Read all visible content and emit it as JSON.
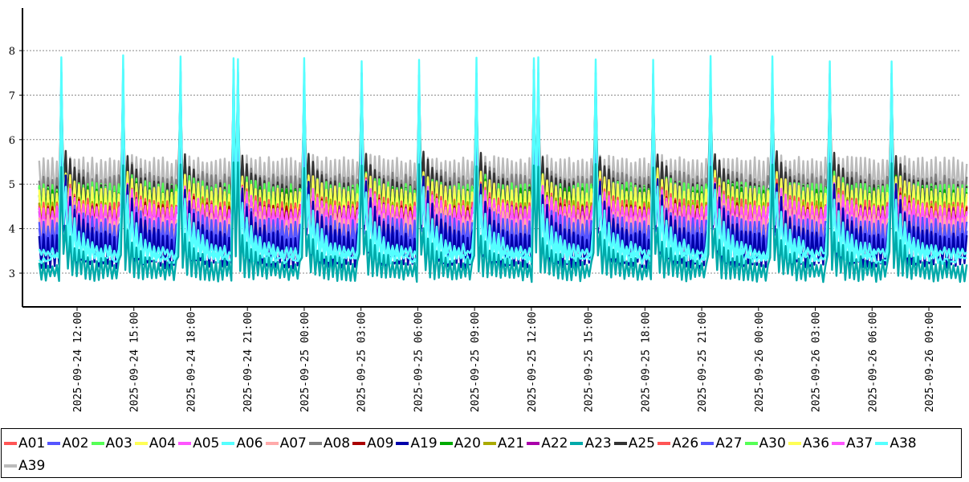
{
  "chart_data": {
    "type": "line",
    "title": "",
    "xlabel": "",
    "ylabel": "",
    "x_start": "2025-09-24 10:00",
    "x_end": "2025-09-26 11:00",
    "x_ticks": [
      "2025-09-24 12:00",
      "2025-09-24 15:00",
      "2025-09-24 18:00",
      "2025-09-24 21:00",
      "2025-09-25 00:00",
      "2025-09-25 03:00",
      "2025-09-25 06:00",
      "2025-09-25 09:00",
      "2025-09-25 12:00",
      "2025-09-25 15:00",
      "2025-09-25 18:00",
      "2025-09-25 21:00",
      "2025-09-26 00:00",
      "2025-09-26 03:00",
      "2025-09-26 06:00",
      "2025-09-26 09:00"
    ],
    "y_ticks": [
      "3",
      "4",
      "5",
      "6",
      "7",
      "8"
    ],
    "ylim": [
      2.3,
      8.8
    ],
    "grid": "horizontal dashed",
    "legend_position": "bottom",
    "series": [
      {
        "name": "A01",
        "color": "#ff5555",
        "band": [
          3.8,
          4.6
        ],
        "spike": 6.2
      },
      {
        "name": "A02",
        "color": "#5555ff",
        "band": [
          3.5,
          4.2
        ],
        "spike": 6.1
      },
      {
        "name": "A03",
        "color": "#55ff55",
        "band": [
          4.3,
          5.0
        ],
        "spike": 6.0
      },
      {
        "name": "A04",
        "color": "#ffff55",
        "band": [
          4.1,
          4.8
        ],
        "spike": 6.3
      },
      {
        "name": "A05",
        "color": "#ff55ff",
        "band": [
          4.0,
          4.4
        ],
        "spike": 6.4
      },
      {
        "name": "A06",
        "color": "#55ffff",
        "band": [
          3.2,
          3.4
        ],
        "spike": 7.9
      },
      {
        "name": "A07",
        "color": "#ffaaaa",
        "band": [
          3.7,
          4.3
        ],
        "spike": 6.0
      },
      {
        "name": "A08",
        "color": "#808080",
        "band": [
          4.4,
          5.2
        ],
        "spike": 6.6
      },
      {
        "name": "A09",
        "color": "#aa0000",
        "band": [
          4.0,
          4.5
        ],
        "spike": 6.1
      },
      {
        "name": "A19",
        "color": "#0000aa",
        "band": [
          3.1,
          3.9
        ],
        "spike": 7.6
      },
      {
        "name": "A20",
        "color": "#00aa00",
        "band": [
          4.2,
          4.9
        ],
        "spike": 5.9
      },
      {
        "name": "A21",
        "color": "#aaaa00",
        "band": [
          4.0,
          4.6
        ],
        "spike": 5.8
      },
      {
        "name": "A22",
        "color": "#aa00aa",
        "band": [
          3.9,
          4.5
        ],
        "spike": 5.8
      },
      {
        "name": "A23",
        "color": "#00aaaa",
        "band": [
          2.8,
          3.3
        ],
        "spike": 5.5
      },
      {
        "name": "A25",
        "color": "#333333",
        "band": [
          4.3,
          5.0
        ],
        "spike": 7.3
      },
      {
        "name": "A26",
        "color": "#ff5555",
        "band": [
          3.9,
          4.6
        ],
        "spike": 6.0
      },
      {
        "name": "A27",
        "color": "#5555ff",
        "band": [
          3.4,
          4.1
        ],
        "spike": 6.0
      },
      {
        "name": "A30",
        "color": "#55ff55",
        "band": [
          4.2,
          5.0
        ],
        "spike": 6.0
      },
      {
        "name": "A36",
        "color": "#ffff55",
        "band": [
          4.0,
          4.9
        ],
        "spike": 6.2
      },
      {
        "name": "A37",
        "color": "#ff55ff",
        "band": [
          3.9,
          4.5
        ],
        "spike": 6.3
      },
      {
        "name": "A38",
        "color": "#55ffff",
        "band": [
          3.3,
          3.6
        ],
        "spike": 7.4
      },
      {
        "name": "A39",
        "color": "#bbbbbb",
        "band": [
          4.6,
          5.6
        ],
        "spike": 5.9
      }
    ],
    "spike_times": [
      "2025-09-24 11:15",
      "2025-09-24 14:25",
      "2025-09-24 17:25",
      "2025-09-24 20:25",
      "2025-09-25 00:00",
      "2025-09-25 03:05",
      "2025-09-25 06:10",
      "2025-09-25 09:05",
      "2025-09-25 12:15",
      "2025-09-25 15:25",
      "2025-09-25 18:30",
      "2025-09-25 21:30",
      "2025-09-26 00:45",
      "2025-09-26 03:45",
      "2025-09-26 07:00"
    ]
  }
}
